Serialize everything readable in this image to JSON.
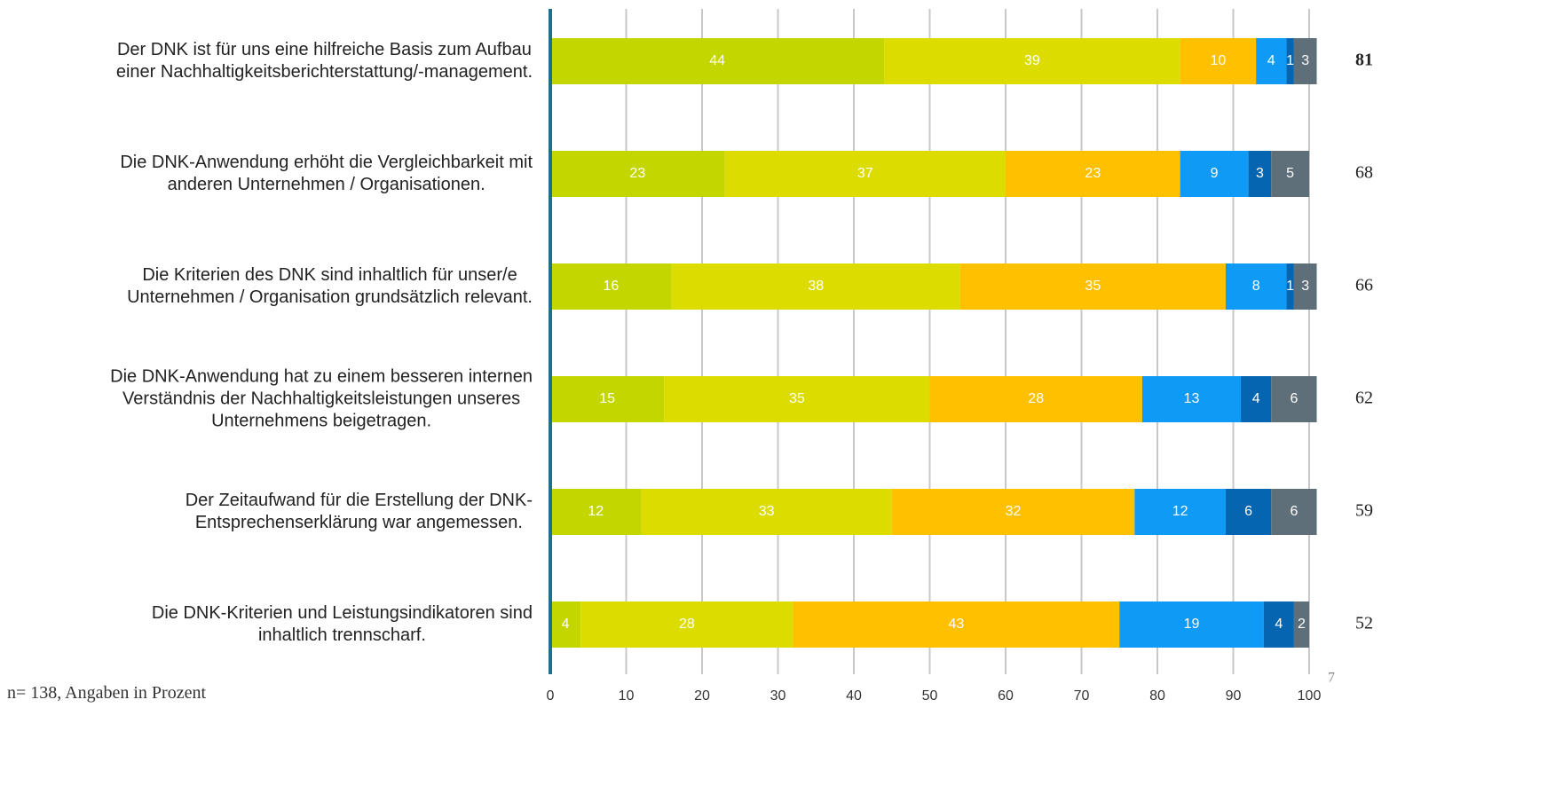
{
  "chart_data": {
    "type": "stacked-bar-horizontal",
    "categories": [
      [
        "Der DNK ist für uns eine hilfreiche Basis zum Aufbau",
        "einer Nachhaltigkeitsberichterstattung/-management."
      ],
      [
        "Die DNK-Anwendung erhöht die Vergleichbarkeit mit",
        "anderen Unternehmen / Organisationen."
      ],
      [
        "Die Kriterien des DNK sind inhaltlich für unser/e",
        "Unternehmen / Organisation grundsätzlich relevant."
      ],
      [
        "Die DNK-Anwendung hat zu einem besseren internen",
        "Verständnis der Nachhaltigkeitsleistungen unseres",
        "Unternehmens beigetragen."
      ],
      [
        "Der Zeitaufwand für die Erstellung der DNK-",
        "Entsprechenserklärung war angemessen."
      ],
      [
        "Die DNK-Kriterien und Leistungsindikatoren sind",
        "inhaltlich trennscharf."
      ]
    ],
    "series": [
      {
        "color": "#c4d600",
        "values": [
          44,
          23,
          16,
          15,
          12,
          4
        ]
      },
      {
        "color": "#dcdc00",
        "values": [
          39,
          37,
          38,
          35,
          33,
          28
        ]
      },
      {
        "color": "#ffc000",
        "values": [
          10,
          23,
          35,
          28,
          32,
          43
        ]
      },
      {
        "color": "#0f9bf5",
        "values": [
          4,
          9,
          8,
          13,
          12,
          19
        ]
      },
      {
        "color": "#0565b0",
        "values": [
          1,
          3,
          1,
          4,
          6,
          4
        ]
      },
      {
        "color": "#5f6f7a",
        "values": [
          3,
          5,
          3,
          6,
          6,
          2
        ]
      }
    ],
    "right_values": [
      81,
      68,
      66,
      62,
      59,
      52
    ],
    "xlim": [
      0,
      100
    ],
    "xticks": [
      0,
      10,
      20,
      30,
      40,
      50,
      60,
      70,
      80,
      90,
      100
    ],
    "grid": true,
    "note": "n= 138, Angaben in Prozent",
    "page_number": "7"
  }
}
